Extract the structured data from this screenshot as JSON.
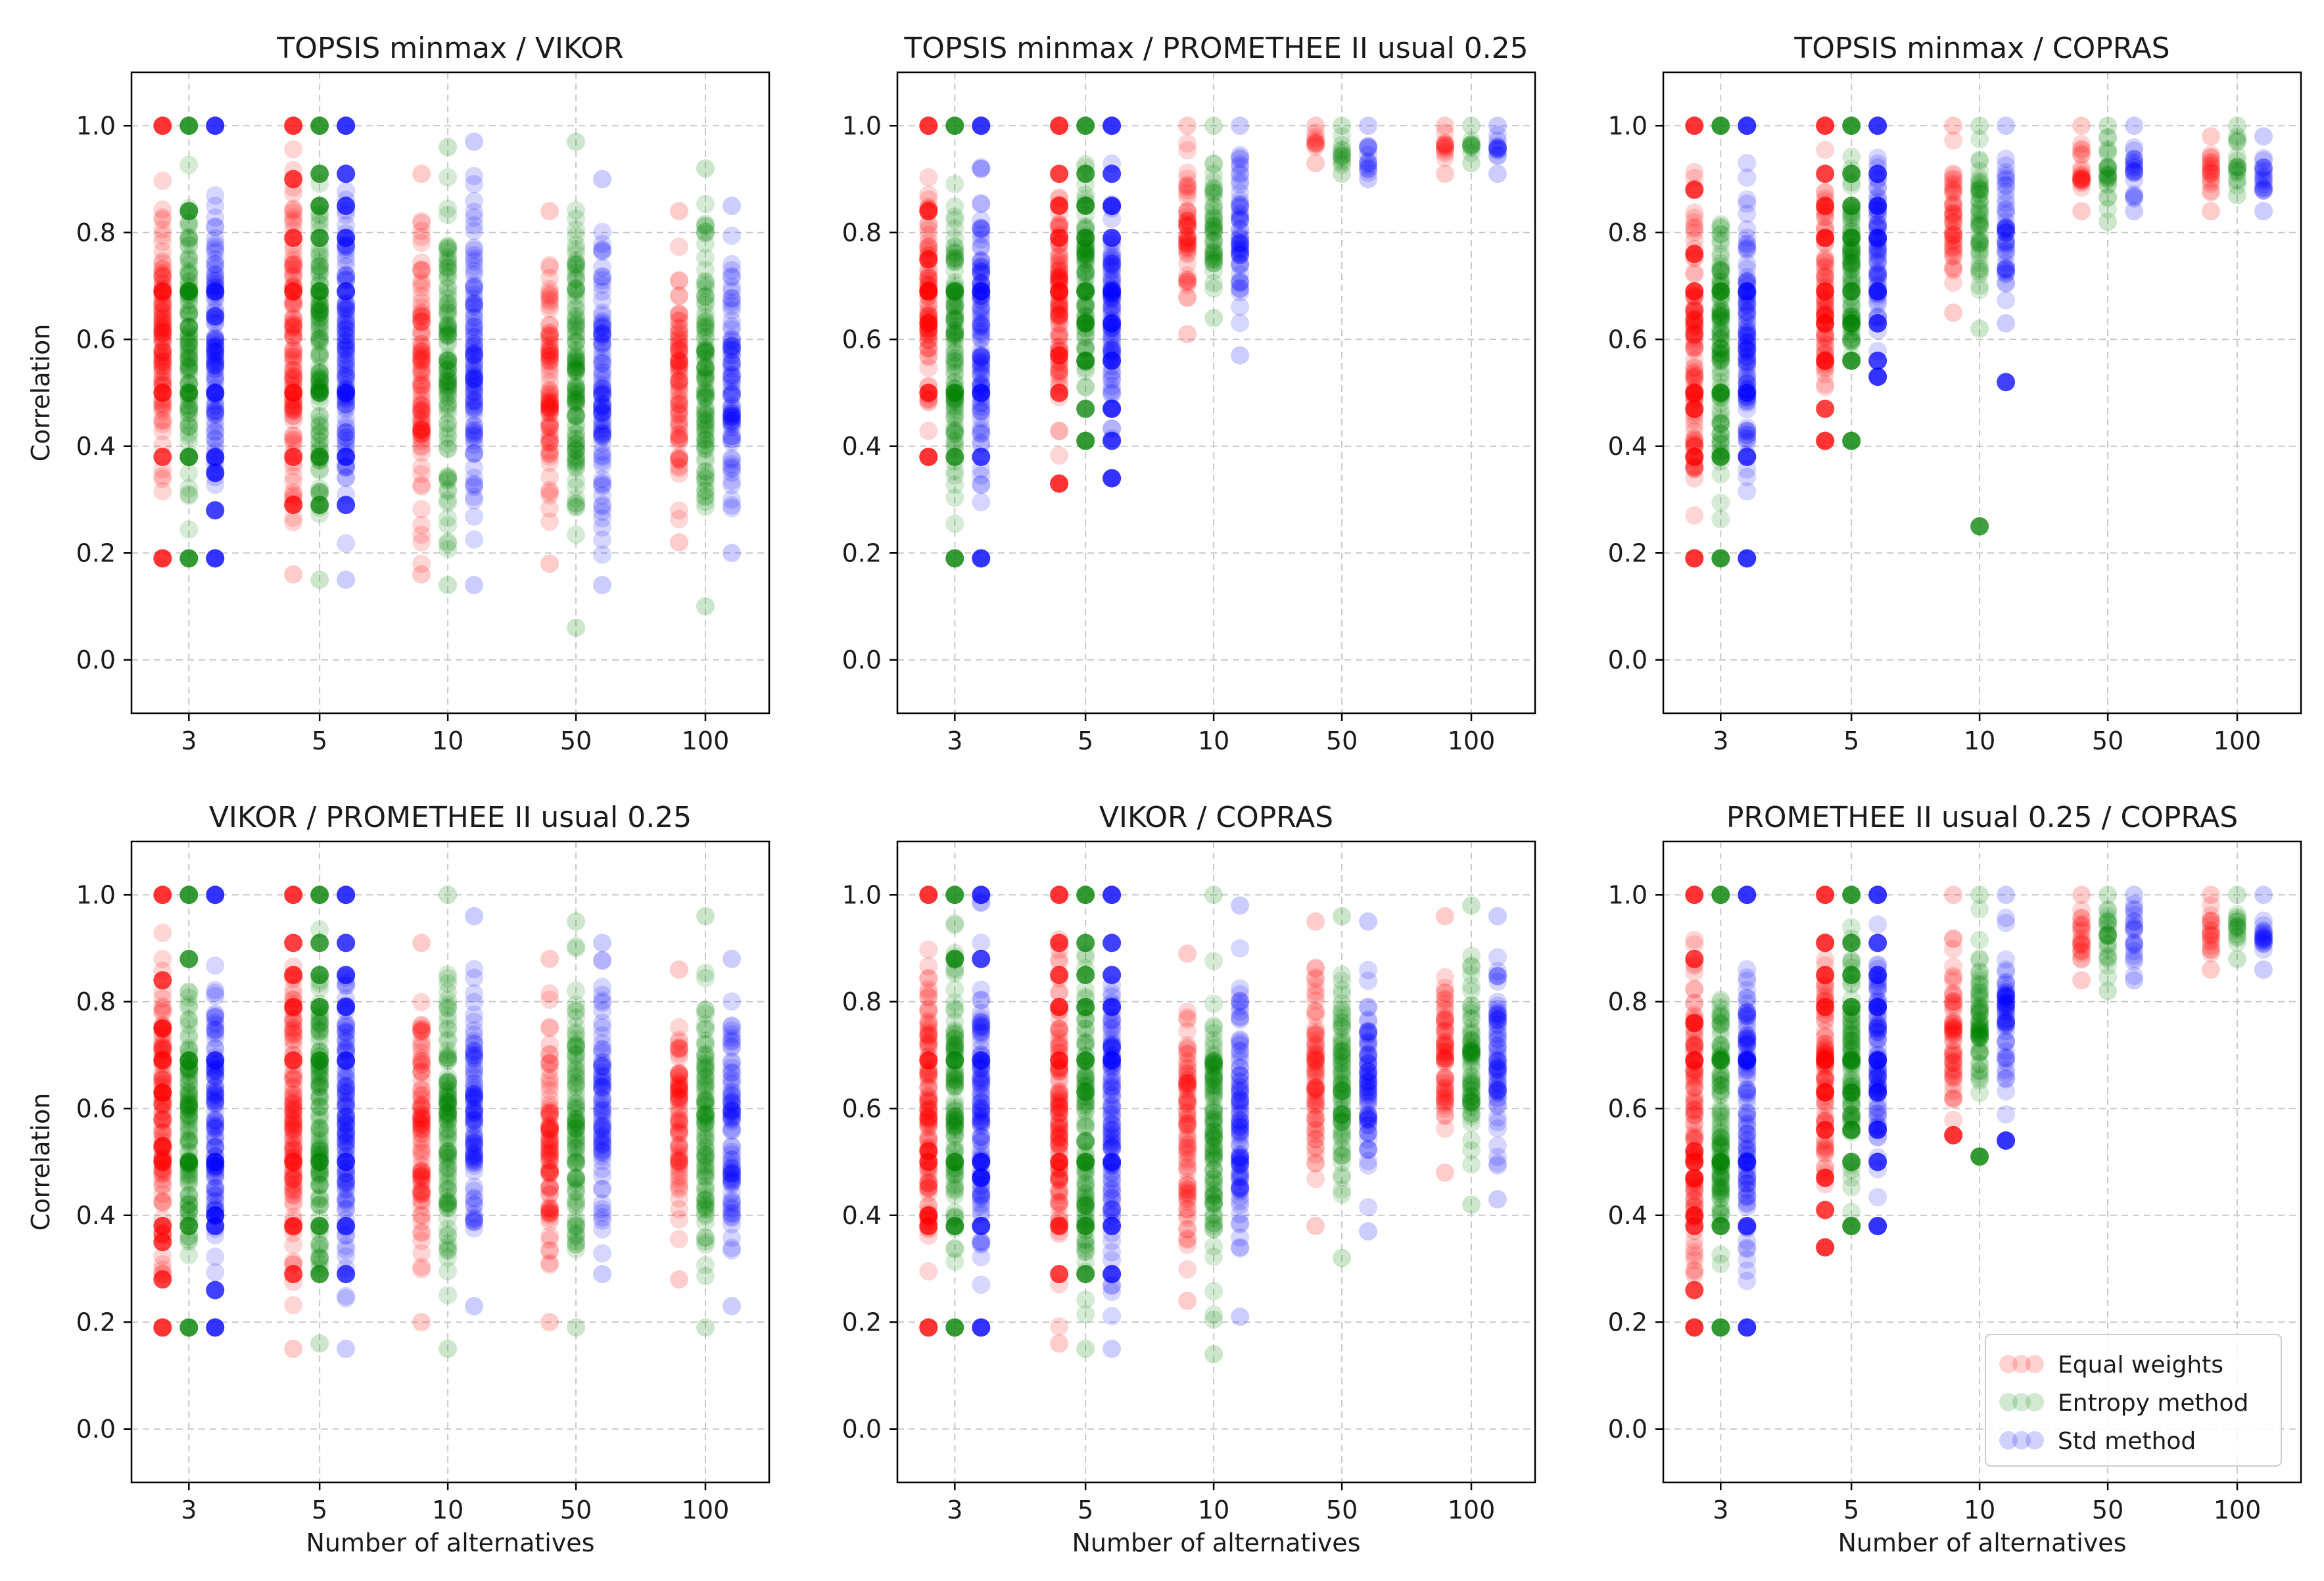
{
  "figure": {
    "shared_x": {
      "label": "Number of alternatives",
      "categories": [
        "3",
        "5",
        "10",
        "50",
        "100"
      ]
    },
    "shared_y": {
      "label": "Correlation",
      "ylim": [
        -0.1,
        1.1
      ],
      "ticks": [
        0.0,
        0.2,
        0.4,
        0.6,
        0.8,
        1.0
      ],
      "tick_labels": [
        "0.0",
        "0.2",
        "0.4",
        "0.6",
        "0.8",
        "1.0"
      ]
    },
    "colors": {
      "equal": "#ff0000",
      "entropy": "#008000",
      "std": "#0000ff",
      "grid": "#c8c8c8"
    },
    "legend": {
      "position": "lower-right of bottom-right panel",
      "entries": [
        {
          "label": "Equal weights",
          "color": "#ff0000"
        },
        {
          "label": "Entropy method",
          "color": "#008000"
        },
        {
          "label": "Std method",
          "color": "#0000ff"
        }
      ]
    }
  },
  "chart_data": [
    {
      "type": "scatter",
      "title": "TOPSIS minmax / VIKOR",
      "xlabel": "",
      "ylabel": "Correlation",
      "ylim": [
        -0.1,
        1.1
      ],
      "grid": true,
      "categories": [
        "3",
        "5",
        "10",
        "50",
        "100"
      ],
      "series": [
        {
          "name": "Equal weights",
          "ranges": [
            [
              0.19,
              1.0
            ],
            [
              0.16,
              1.0
            ],
            [
              0.16,
              0.91
            ],
            [
              0.18,
              0.84
            ],
            [
              0.22,
              0.84
            ]
          ],
          "discrete": [
            [
              1.0,
              0.69,
              0.5,
              0.38,
              0.19
            ],
            [
              1.0,
              0.9,
              0.79,
              0.69,
              0.5,
              0.38,
              0.29
            ],
            [],
            [],
            []
          ]
        },
        {
          "name": "Entropy method",
          "ranges": [
            [
              0.19,
              1.0
            ],
            [
              0.15,
              1.0
            ],
            [
              0.14,
              0.96
            ],
            [
              0.06,
              0.97
            ],
            [
              0.1,
              0.92
            ]
          ],
          "discrete": [
            [
              1.0,
              0.84,
              0.69,
              0.5,
              0.38,
              0.19
            ],
            [
              1.0,
              0.91,
              0.85,
              0.79,
              0.69,
              0.5,
              0.38,
              0.29
            ],
            [],
            [],
            []
          ]
        },
        {
          "name": "Std method",
          "ranges": [
            [
              0.19,
              1.0
            ],
            [
              0.15,
              1.0
            ],
            [
              0.14,
              0.97
            ],
            [
              0.14,
              0.9
            ],
            [
              0.2,
              0.85
            ]
          ],
          "discrete": [
            [
              1.0,
              0.69,
              0.5,
              0.38,
              0.35,
              0.28,
              0.19
            ],
            [
              1.0,
              0.91,
              0.85,
              0.79,
              0.69,
              0.5,
              0.38,
              0.29
            ],
            [],
            [],
            []
          ]
        }
      ]
    },
    {
      "type": "scatter",
      "title": "TOPSIS minmax / PROMETHEE II usual 0.25",
      "xlabel": "",
      "ylabel": "",
      "ylim": [
        -0.1,
        1.1
      ],
      "grid": true,
      "categories": [
        "3",
        "5",
        "10",
        "50",
        "100"
      ],
      "series": [
        {
          "name": "Equal weights",
          "ranges": [
            [
              0.38,
              1.0
            ],
            [
              0.33,
              1.0
            ],
            [
              0.61,
              1.0
            ],
            [
              0.93,
              1.0
            ],
            [
              0.91,
              1.0
            ]
          ],
          "discrete": [
            [
              1.0,
              0.84,
              0.75,
              0.69,
              0.63,
              0.5,
              0.38
            ],
            [
              1.0,
              0.91,
              0.85,
              0.79,
              0.69,
              0.57,
              0.5,
              0.33
            ],
            [],
            [],
            []
          ]
        },
        {
          "name": "Entropy method",
          "ranges": [
            [
              0.19,
              1.0
            ],
            [
              0.41,
              1.0
            ],
            [
              0.64,
              1.0
            ],
            [
              0.91,
              1.0
            ],
            [
              0.93,
              1.0
            ]
          ],
          "discrete": [
            [
              1.0,
              0.69,
              0.5,
              0.38,
              0.19
            ],
            [
              1.0,
              0.91,
              0.85,
              0.79,
              0.69,
              0.63,
              0.56,
              0.47,
              0.41
            ],
            [],
            [],
            []
          ]
        },
        {
          "name": "Std method",
          "ranges": [
            [
              0.19,
              1.0
            ],
            [
              0.34,
              1.0
            ],
            [
              0.57,
              1.0
            ],
            [
              0.9,
              1.0
            ],
            [
              0.91,
              1.0
            ]
          ],
          "discrete": [
            [
              1.0,
              0.69,
              0.5,
              0.38,
              0.19
            ],
            [
              1.0,
              0.91,
              0.85,
              0.79,
              0.69,
              0.63,
              0.56,
              0.47,
              0.41,
              0.34
            ],
            [],
            [],
            []
          ]
        }
      ]
    },
    {
      "type": "scatter",
      "title": "TOPSIS minmax / COPRAS",
      "xlabel": "",
      "ylabel": "",
      "ylim": [
        -0.1,
        1.1
      ],
      "grid": true,
      "categories": [
        "3",
        "5",
        "10",
        "50",
        "100"
      ],
      "series": [
        {
          "name": "Equal weights",
          "ranges": [
            [
              0.19,
              1.0
            ],
            [
              0.41,
              1.0
            ],
            [
              0.65,
              1.0
            ],
            [
              0.84,
              1.0
            ],
            [
              0.84,
              0.98
            ]
          ],
          "discrete": [
            [
              1.0,
              0.88,
              0.76,
              0.69,
              0.5,
              0.47,
              0.38,
              0.19
            ],
            [
              1.0,
              0.91,
              0.85,
              0.79,
              0.69,
              0.63,
              0.56,
              0.47,
              0.41
            ],
            [],
            [],
            []
          ]
        },
        {
          "name": "Entropy method",
          "ranges": [
            [
              0.19,
              1.0
            ],
            [
              0.41,
              1.0
            ],
            [
              0.62,
              1.0
            ],
            [
              0.82,
              1.0
            ],
            [
              0.87,
              1.0
            ]
          ],
          "discrete": [
            [
              1.0,
              0.69,
              0.5,
              0.38,
              0.19
            ],
            [
              1.0,
              0.91,
              0.85,
              0.79,
              0.69,
              0.63,
              0.56,
              0.41
            ],
            [
              0.25
            ],
            [],
            []
          ]
        },
        {
          "name": "Std method",
          "ranges": [
            [
              0.19,
              1.0
            ],
            [
              0.53,
              1.0
            ],
            [
              0.63,
              1.0
            ],
            [
              0.84,
              1.0
            ],
            [
              0.84,
              0.98
            ]
          ],
          "discrete": [
            [
              1.0,
              0.69,
              0.5,
              0.38,
              0.19
            ],
            [
              1.0,
              0.91,
              0.85,
              0.79,
              0.69,
              0.63,
              0.56,
              0.53
            ],
            [
              0.52
            ],
            [],
            []
          ]
        }
      ]
    },
    {
      "type": "scatter",
      "title": "VIKOR / PROMETHEE II usual 0.25",
      "xlabel": "Number of alternatives",
      "ylabel": "Correlation",
      "ylim": [
        -0.1,
        1.1
      ],
      "grid": true,
      "categories": [
        "3",
        "5",
        "10",
        "50",
        "100"
      ],
      "series": [
        {
          "name": "Equal weights",
          "ranges": [
            [
              0.19,
              1.0
            ],
            [
              0.15,
              1.0
            ],
            [
              0.2,
              0.91
            ],
            [
              0.2,
              0.88
            ],
            [
              0.28,
              0.86
            ]
          ],
          "discrete": [
            [
              1.0,
              0.84,
              0.75,
              0.69,
              0.63,
              0.53,
              0.5,
              0.38,
              0.35,
              0.28,
              0.19
            ],
            [
              1.0,
              0.91,
              0.85,
              0.79,
              0.69,
              0.5,
              0.38,
              0.29
            ],
            [],
            [],
            []
          ]
        },
        {
          "name": "Entropy method",
          "ranges": [
            [
              0.19,
              1.0
            ],
            [
              0.16,
              1.0
            ],
            [
              0.15,
              1.0
            ],
            [
              0.19,
              0.95
            ],
            [
              0.19,
              0.96
            ]
          ],
          "discrete": [
            [
              1.0,
              0.88,
              0.69,
              0.5,
              0.38,
              0.19
            ],
            [
              1.0,
              0.91,
              0.85,
              0.79,
              0.69,
              0.5,
              0.38,
              0.29
            ],
            [],
            [],
            []
          ]
        },
        {
          "name": "Std method",
          "ranges": [
            [
              0.19,
              1.0
            ],
            [
              0.15,
              1.0
            ],
            [
              0.23,
              0.96
            ],
            [
              0.29,
              0.91
            ],
            [
              0.23,
              0.88
            ]
          ],
          "discrete": [
            [
              1.0,
              0.69,
              0.5,
              0.4,
              0.38,
              0.26,
              0.19
            ],
            [
              1.0,
              0.91,
              0.85,
              0.79,
              0.69,
              0.5,
              0.38,
              0.29
            ],
            [],
            [],
            []
          ]
        }
      ]
    },
    {
      "type": "scatter",
      "title": "VIKOR / COPRAS",
      "xlabel": "Number of alternatives",
      "ylabel": "",
      "ylim": [
        -0.1,
        1.1
      ],
      "grid": true,
      "categories": [
        "3",
        "5",
        "10",
        "50",
        "100"
      ],
      "series": [
        {
          "name": "Equal weights",
          "ranges": [
            [
              0.19,
              1.0
            ],
            [
              0.16,
              1.0
            ],
            [
              0.24,
              0.89
            ],
            [
              0.38,
              0.95
            ],
            [
              0.48,
              0.96
            ]
          ],
          "discrete": [
            [
              1.0,
              0.69,
              0.52,
              0.5,
              0.4,
              0.38,
              0.19
            ],
            [
              1.0,
              0.91,
              0.85,
              0.79,
              0.69,
              0.5,
              0.38,
              0.29
            ],
            [],
            [],
            []
          ]
        },
        {
          "name": "Entropy method",
          "ranges": [
            [
              0.19,
              1.0
            ],
            [
              0.15,
              1.0
            ],
            [
              0.14,
              1.0
            ],
            [
              0.32,
              0.96
            ],
            [
              0.42,
              0.98
            ]
          ],
          "discrete": [
            [
              1.0,
              0.88,
              0.69,
              0.5,
              0.38,
              0.19
            ],
            [
              1.0,
              0.91,
              0.85,
              0.79,
              0.69,
              0.5,
              0.38,
              0.29
            ],
            [],
            [],
            []
          ]
        },
        {
          "name": "Std method",
          "ranges": [
            [
              0.19,
              1.0
            ],
            [
              0.15,
              1.0
            ],
            [
              0.21,
              0.98
            ],
            [
              0.37,
              0.95
            ],
            [
              0.43,
              0.96
            ]
          ],
          "discrete": [
            [
              1.0,
              0.88,
              0.69,
              0.5,
              0.47,
              0.38,
              0.19
            ],
            [
              1.0,
              0.91,
              0.85,
              0.79,
              0.69,
              0.5,
              0.38,
              0.29
            ],
            [],
            [],
            []
          ]
        }
      ]
    },
    {
      "type": "scatter",
      "title": "PROMETHEE II usual 0.25 / COPRAS",
      "xlabel": "Number of alternatives",
      "ylabel": "",
      "ylim": [
        -0.1,
        1.1
      ],
      "grid": true,
      "categories": [
        "3",
        "5",
        "10",
        "50",
        "100"
      ],
      "series": [
        {
          "name": "Equal weights",
          "ranges": [
            [
              0.19,
              1.0
            ],
            [
              0.34,
              1.0
            ],
            [
              0.55,
              1.0
            ],
            [
              0.84,
              1.0
            ],
            [
              0.86,
              1.0
            ]
          ],
          "discrete": [
            [
              1.0,
              0.88,
              0.76,
              0.69,
              0.52,
              0.5,
              0.47,
              0.4,
              0.38,
              0.26,
              0.19
            ],
            [
              1.0,
              0.91,
              0.85,
              0.79,
              0.69,
              0.63,
              0.56,
              0.47,
              0.41,
              0.34
            ],
            [
              0.55
            ],
            [],
            []
          ]
        },
        {
          "name": "Entropy method",
          "ranges": [
            [
              0.19,
              1.0
            ],
            [
              0.38,
              1.0
            ],
            [
              0.51,
              1.0
            ],
            [
              0.82,
              1.0
            ],
            [
              0.88,
              1.0
            ]
          ],
          "discrete": [
            [
              1.0,
              0.69,
              0.5,
              0.38,
              0.19
            ],
            [
              1.0,
              0.91,
              0.85,
              0.79,
              0.69,
              0.63,
              0.56,
              0.5,
              0.38
            ],
            [
              0.51
            ],
            [],
            []
          ]
        },
        {
          "name": "Std method",
          "ranges": [
            [
              0.19,
              1.0
            ],
            [
              0.38,
              1.0
            ],
            [
              0.54,
              1.0
            ],
            [
              0.84,
              1.0
            ],
            [
              0.86,
              1.0
            ]
          ],
          "discrete": [
            [
              1.0,
              0.69,
              0.5,
              0.38,
              0.19
            ],
            [
              1.0,
              0.91,
              0.85,
              0.79,
              0.69,
              0.63,
              0.56,
              0.5,
              0.38
            ],
            [
              0.54
            ],
            [],
            []
          ]
        }
      ]
    }
  ]
}
